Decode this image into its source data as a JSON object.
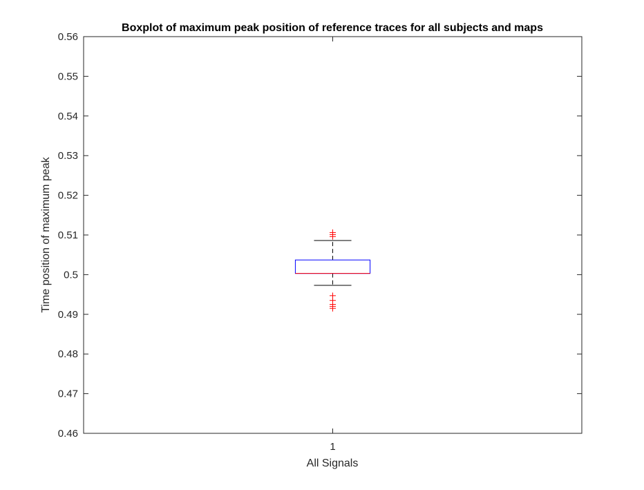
{
  "chart_data": {
    "type": "boxplot",
    "title": "Boxplot of maximum peak position of reference traces for all subjects and maps",
    "xlabel": "All Signals",
    "ylabel": "Time position of maximum peak",
    "ylim": [
      0.46,
      0.56
    ],
    "yticks": [
      0.46,
      0.47,
      0.48,
      0.49,
      0.5,
      0.51,
      0.52,
      0.53,
      0.54,
      0.55,
      0.56
    ],
    "ytick_labels": [
      "0.46",
      "0.47",
      "0.48",
      "0.49",
      "0.5",
      "0.51",
      "0.52",
      "0.53",
      "0.54",
      "0.55",
      "0.56"
    ],
    "categories": [
      "1"
    ],
    "grid": false,
    "boxes": [
      {
        "category": "1",
        "q1": 0.5003,
        "median": 0.5003,
        "q3": 0.5037,
        "whisker_low": 0.4973,
        "whisker_high": 0.5086,
        "outliers": [
          0.5096,
          0.5101,
          0.5106,
          0.4947,
          0.4935,
          0.4925,
          0.492,
          0.4915
        ]
      }
    ],
    "colors": {
      "box": "#0000ff",
      "median": "#ff0000",
      "whisker": "#000000",
      "outlier": "#ff0000",
      "axes": "#262626"
    }
  }
}
